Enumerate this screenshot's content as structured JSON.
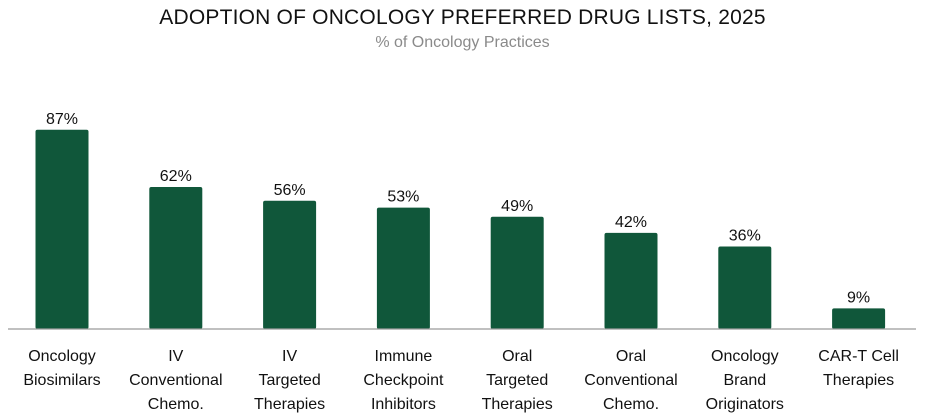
{
  "chart_data": {
    "type": "bar",
    "title": "ADOPTION OF ONCOLOGY PREFERRED DRUG LISTS, 2025",
    "subtitle": "% of Oncology Practices",
    "categories": [
      [
        "Oncology",
        "Biosimilars"
      ],
      [
        "IV",
        "Conventional",
        "Chemo."
      ],
      [
        "IV",
        "Targeted",
        "Therapies"
      ],
      [
        "Immune",
        "Checkpoint",
        "Inhibitors"
      ],
      [
        "Oral",
        "Targeted",
        "Therapies"
      ],
      [
        "Oral",
        "Conventional",
        "Chemo."
      ],
      [
        "Oncology",
        "Brand",
        "Originators"
      ],
      [
        "CAR-T Cell",
        "Therapies"
      ]
    ],
    "values": [
      87,
      62,
      56,
      53,
      49,
      42,
      36,
      9
    ],
    "data_labels": [
      "87%",
      "62%",
      "56%",
      "53%",
      "49%",
      "42%",
      "36%",
      "9%"
    ],
    "ylim": [
      0,
      100
    ],
    "grid": false,
    "legend": "none",
    "bar_color": "#10573a",
    "axis_color": "#9a9a9a"
  }
}
